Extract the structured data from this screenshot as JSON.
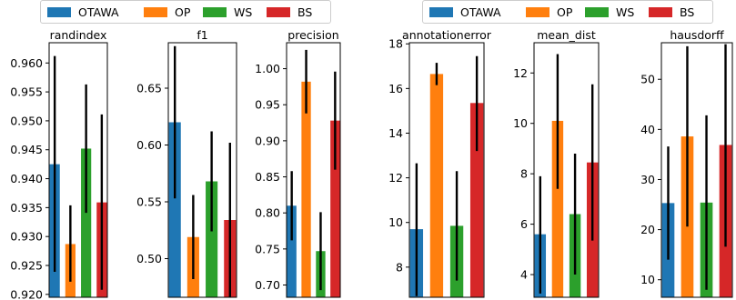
{
  "legends": [
    {
      "items": [
        {
          "label": "OTAWA",
          "color": "#1f77b4"
        },
        {
          "label": "OP",
          "color": "#ff7f0e"
        },
        {
          "label": "WS",
          "color": "#2ca02c"
        },
        {
          "label": "BS",
          "color": "#d62728"
        }
      ]
    },
    {
      "items": [
        {
          "label": "OTAWA",
          "color": "#1f77b4"
        },
        {
          "label": "OP",
          "color": "#ff7f0e"
        },
        {
          "label": "WS",
          "color": "#2ca02c"
        },
        {
          "label": "BS",
          "color": "#d62728"
        }
      ]
    }
  ],
  "chart_data": [
    {
      "type": "bar",
      "title": "randindex",
      "categories": [
        "OTAWA",
        "OP",
        "WS",
        "BS"
      ],
      "values": [
        0.9425,
        0.9287,
        0.9452,
        0.9359
      ],
      "error_low": [
        0.9239,
        0.9222,
        0.9341,
        0.9208
      ],
      "error_high": [
        0.9612,
        0.9354,
        0.9563,
        0.9511
      ],
      "ylim": [
        0.9195,
        0.9635
      ],
      "yticks": [
        0.92,
        0.925,
        0.93,
        0.935,
        0.94,
        0.945,
        0.95,
        0.955,
        0.96
      ],
      "ytick_labels": [
        "0.920",
        "0.925",
        "0.930",
        "0.935",
        "0.940",
        "0.945",
        "0.950",
        "0.955",
        "0.960"
      ]
    },
    {
      "type": "bar",
      "title": "f1",
      "categories": [
        "OTAWA",
        "OP",
        "WS",
        "BS"
      ],
      "values": [
        0.62,
        0.519,
        0.568,
        0.534
      ],
      "error_low": [
        0.553,
        0.482,
        0.524,
        0.466
      ],
      "error_high": [
        0.687,
        0.556,
        0.612,
        0.602
      ],
      "ylim": [
        0.466,
        0.69
      ],
      "yticks": [
        0.5,
        0.55,
        0.6,
        0.65
      ],
      "ytick_labels": [
        "0.50",
        "0.55",
        "0.60",
        "0.65"
      ]
    },
    {
      "type": "bar",
      "title": "precision",
      "categories": [
        "OTAWA",
        "OP",
        "WS",
        "BS"
      ],
      "values": [
        0.81,
        0.982,
        0.747,
        0.928
      ],
      "error_low": [
        0.762,
        0.938,
        0.693,
        0.86
      ],
      "error_high": [
        0.858,
        1.026,
        0.801,
        0.996
      ],
      "ylim": [
        0.683,
        1.036
      ],
      "yticks": [
        0.7,
        0.75,
        0.8,
        0.85,
        0.9,
        0.95,
        1.0
      ],
      "ytick_labels": [
        "0.70",
        "0.75",
        "0.80",
        "0.85",
        "0.90",
        "0.95",
        "1.00"
      ]
    },
    {
      "type": "bar",
      "title": "annotationerror",
      "categories": [
        "OTAWA",
        "OP",
        "WS",
        "BS"
      ],
      "values": [
        9.7,
        16.65,
        9.85,
        15.35
      ],
      "error_low": [
        6.7,
        16.15,
        7.4,
        13.2
      ],
      "error_high": [
        12.65,
        17.15,
        12.3,
        17.45
      ],
      "ylim": [
        6.65,
        18.05
      ],
      "yticks": [
        8,
        10,
        12,
        14,
        16,
        18
      ],
      "ytick_labels": [
        "8",
        "10",
        "12",
        "14",
        "16",
        "18"
      ]
    },
    {
      "type": "bar",
      "title": "mean_dist",
      "categories": [
        "OTAWA",
        "OP",
        "WS",
        "BS"
      ],
      "values": [
        5.6,
        10.1,
        6.4,
        8.45
      ],
      "error_low": [
        3.25,
        7.4,
        4.0,
        5.35
      ],
      "error_high": [
        7.9,
        12.75,
        8.8,
        11.55
      ],
      "ylim": [
        3.1,
        13.2
      ],
      "yticks": [
        4,
        6,
        8,
        10,
        12
      ],
      "ytick_labels": [
        "4",
        "6",
        "8",
        "10",
        "12"
      ]
    },
    {
      "type": "bar",
      "title": "hausdorff",
      "categories": [
        "OTAWA",
        "OP",
        "WS",
        "BS"
      ],
      "values": [
        25.3,
        38.6,
        25.4,
        36.9
      ],
      "error_low": [
        14.0,
        20.6,
        8.0,
        16.6
      ],
      "error_high": [
        36.6,
        56.6,
        42.8,
        57.0
      ],
      "ylim": [
        6.5,
        57.3
      ],
      "yticks": [
        10,
        20,
        30,
        40,
        50
      ],
      "ytick_labels": [
        "10",
        "20",
        "30",
        "40",
        "50"
      ]
    }
  ]
}
